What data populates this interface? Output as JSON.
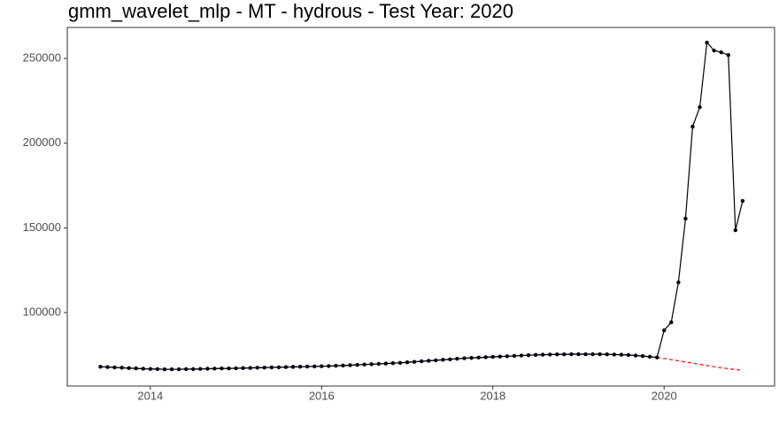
{
  "chart_data": {
    "type": "line",
    "title": "gmm_wavelet_mlp - MT - hydrous - Test Year: 2020",
    "x": [
      2013.417,
      2013.5,
      2013.583,
      2013.667,
      2013.75,
      2013.833,
      2013.917,
      2014,
      2014.083,
      2014.167,
      2014.25,
      2014.333,
      2014.417,
      2014.5,
      2014.583,
      2014.667,
      2014.75,
      2014.833,
      2014.917,
      2015,
      2015.083,
      2015.167,
      2015.25,
      2015.333,
      2015.417,
      2015.5,
      2015.583,
      2015.667,
      2015.75,
      2015.833,
      2015.917,
      2016,
      2016.083,
      2016.167,
      2016.25,
      2016.333,
      2016.417,
      2016.5,
      2016.583,
      2016.667,
      2016.75,
      2016.833,
      2016.917,
      2017,
      2017.083,
      2017.167,
      2017.25,
      2017.333,
      2017.417,
      2017.5,
      2017.583,
      2017.667,
      2017.75,
      2017.833,
      2017.917,
      2018,
      2018.083,
      2018.167,
      2018.25,
      2018.333,
      2018.417,
      2018.5,
      2018.583,
      2018.667,
      2018.75,
      2018.833,
      2018.917,
      2019,
      2019.083,
      2019.167,
      2019.25,
      2019.333,
      2019.417,
      2019.5,
      2019.583,
      2019.667,
      2019.75,
      2019.833,
      2019.917,
      2020,
      2020.083,
      2020.167,
      2020.25,
      2020.333,
      2020.417,
      2020.5,
      2020.583,
      2020.667,
      2020.75,
      2020.833,
      2020.917
    ],
    "series": [
      {
        "color": "#0000ff",
        "linestyle": "solid",
        "markers": false,
        "values": [
          68000,
          67800,
          67600,
          67400,
          67200,
          67000,
          66800,
          66700,
          66600,
          66500,
          66500,
          66500,
          66600,
          66600,
          66700,
          66800,
          66900,
          67000,
          67000,
          67100,
          67200,
          67300,
          67400,
          67500,
          67600,
          67700,
          67800,
          67900,
          68000,
          68100,
          68200,
          68300,
          68400,
          68600,
          68700,
          68900,
          69100,
          69300,
          69500,
          69700,
          69900,
          70100,
          70300,
          70600,
          70900,
          71200,
          71500,
          71800,
          72100,
          72400,
          72700,
          73000,
          73200,
          73400,
          73600,
          73800,
          74000,
          74200,
          74400,
          74600,
          74800,
          75000,
          75100,
          75200,
          75300,
          75300,
          75400,
          75400,
          75400,
          75400,
          75400,
          75300,
          75200,
          75100,
          74900,
          74600,
          74300,
          73900,
          73500,
          null,
          null,
          null,
          null,
          null,
          null,
          null,
          null,
          null,
          null,
          null,
          null
        ]
      },
      {
        "color": "#000000",
        "linestyle": "solid",
        "markers": true,
        "values": [
          68000,
          67800,
          67600,
          67400,
          67200,
          67000,
          66800,
          66700,
          66600,
          66500,
          66500,
          66500,
          66600,
          66600,
          66700,
          66800,
          66900,
          67000,
          67000,
          67100,
          67200,
          67300,
          67400,
          67500,
          67600,
          67700,
          67800,
          67900,
          68000,
          68100,
          68200,
          68300,
          68400,
          68600,
          68700,
          68900,
          69100,
          69300,
          69500,
          69700,
          69900,
          70100,
          70300,
          70600,
          70900,
          71200,
          71500,
          71800,
          72100,
          72400,
          72700,
          73000,
          73200,
          73400,
          73600,
          73800,
          74000,
          74200,
          74400,
          74600,
          74800,
          75000,
          75100,
          75200,
          75300,
          75300,
          75400,
          75400,
          75400,
          75400,
          75400,
          75300,
          75200,
          75100,
          74900,
          74600,
          74300,
          73900,
          73500,
          89500,
          94200,
          117800,
          155400,
          209800,
          221300,
          259400,
          254700,
          253600,
          252000,
          148600,
          165900
        ]
      },
      {
        "color": "#ff0000",
        "linestyle": "dashed",
        "markers": false,
        "values": [
          null,
          null,
          null,
          null,
          null,
          null,
          null,
          null,
          null,
          null,
          null,
          null,
          null,
          null,
          null,
          null,
          null,
          null,
          null,
          null,
          null,
          null,
          null,
          null,
          null,
          null,
          null,
          null,
          null,
          null,
          null,
          null,
          null,
          null,
          null,
          null,
          null,
          null,
          null,
          null,
          null,
          null,
          null,
          null,
          null,
          null,
          null,
          null,
          null,
          null,
          null,
          null,
          null,
          null,
          null,
          null,
          null,
          null,
          null,
          null,
          null,
          null,
          null,
          null,
          null,
          null,
          null,
          null,
          null,
          null,
          null,
          null,
          null,
          null,
          null,
          null,
          null,
          null,
          73500,
          72900,
          72200,
          71500,
          70800,
          70100,
          69400,
          68700,
          68000,
          67400,
          66800,
          66300,
          65900
        ]
      }
    ],
    "xlim": [
      2013.03,
      2021.29
    ],
    "xticks": [
      2014,
      2016,
      2018,
      2020
    ],
    "ylim": [
      56600,
      268300
    ],
    "yticks": [
      100000,
      150000,
      200000,
      250000
    ],
    "grid": false
  }
}
